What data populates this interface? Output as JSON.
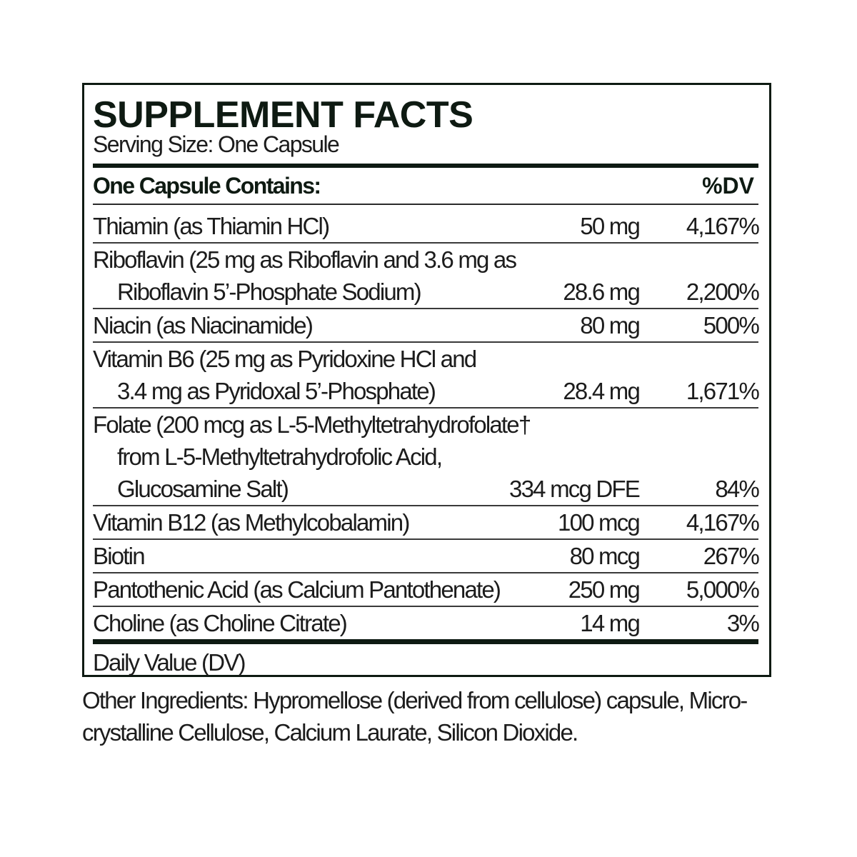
{
  "colors": {
    "border": "#0e1a12",
    "text": "#1c1c1c"
  },
  "title": "SUPPLEMENT FACTS",
  "serving_size": "Serving Size: One Capsule",
  "header": {
    "contains": "One Capsule Contains:",
    "dv": "%DV"
  },
  "rows": [
    {
      "lines": [
        "Thiamin (as Thiamin HCl)"
      ],
      "amount": "50 mg",
      "dv": "4,167%"
    },
    {
      "lines": [
        "Riboflavin (25 mg as Riboflavin and 3.6 mg as",
        "Riboflavin 5’-Phosphate Sodium)"
      ],
      "amount": "28.6 mg",
      "dv": "2,200%"
    },
    {
      "lines": [
        "Niacin (as Niacinamide)"
      ],
      "amount": "80 mg",
      "dv": "500%"
    },
    {
      "lines": [
        "Vitamin B6 (25 mg as Pyridoxine HCl and",
        "3.4 mg as Pyridoxal 5’-Phosphate)"
      ],
      "amount": "28.4 mg",
      "dv": "1,671%"
    },
    {
      "lines": [
        "Folate (200 mcg as L-5-Methyltetrahydrofolate†",
        "from L-5-Methyltetrahydrofolic Acid,",
        "Glucosamine Salt)"
      ],
      "amount": "334 mcg DFE",
      "dv": "84%"
    },
    {
      "lines": [
        "Vitamin B12 (as Methylcobalamin)"
      ],
      "amount": "100 mcg",
      "dv": "4,167%"
    },
    {
      "lines": [
        "Biotin"
      ],
      "amount": "80 mcg",
      "dv": "267%"
    },
    {
      "lines": [
        "Pantothenic Acid (as Calcium Pantothenate)"
      ],
      "amount": "250 mg",
      "dv": "5,000%"
    },
    {
      "lines": [
        "Choline (as Choline Citrate)"
      ],
      "amount": "14 mg",
      "dv": "3%"
    }
  ],
  "footnote": "Daily Value (DV)",
  "other_ingredients": [
    "Other Ingredients: Hypromellose (derived from cellulose) capsule, Micro-",
    "crystalline Cellulose, Calcium Laurate, Silicon Dioxide."
  ]
}
